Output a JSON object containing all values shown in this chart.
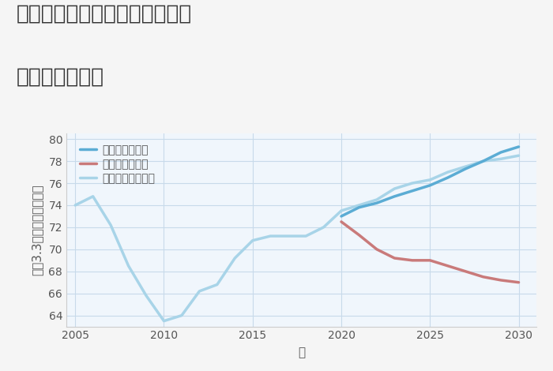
{
  "title_line1": "大阪府堺市堺区百舌鳥夕雲町の",
  "title_line2": "土地の価格推移",
  "xlabel": "年",
  "ylabel": "坪（3.3㎡）単価（万円）",
  "ylim": [
    63,
    80.5
  ],
  "xlim": [
    2004.5,
    2031
  ],
  "yticks": [
    64,
    66,
    68,
    70,
    72,
    74,
    76,
    78,
    80
  ],
  "xticks": [
    2005,
    2010,
    2015,
    2020,
    2025,
    2030
  ],
  "fig_bg_color": "#f5f5f5",
  "plot_bg_color": "#f0f6fc",
  "grid_color": "#c8daea",
  "good_scenario": {
    "years": [
      2020,
      2021,
      2022,
      2023,
      2024,
      2025,
      2026,
      2027,
      2028,
      2029,
      2030
    ],
    "values": [
      73.0,
      73.8,
      74.2,
      74.8,
      75.3,
      75.8,
      76.5,
      77.3,
      78.0,
      78.8,
      79.3
    ],
    "color": "#5bacd4",
    "label": "グッドシナリオ",
    "linewidth": 2.5
  },
  "bad_scenario": {
    "years": [
      2020,
      2021,
      2022,
      2023,
      2024,
      2025,
      2026,
      2027,
      2028,
      2029,
      2030
    ],
    "values": [
      72.5,
      71.3,
      70.0,
      69.2,
      69.0,
      69.0,
      68.5,
      68.0,
      67.5,
      67.2,
      67.0
    ],
    "color": "#c97a7a",
    "label": "バッドシナリオ",
    "linewidth": 2.5
  },
  "normal_scenario": {
    "years": [
      2005,
      2006,
      2007,
      2008,
      2009,
      2010,
      2011,
      2012,
      2013,
      2014,
      2015,
      2016,
      2017,
      2018,
      2019,
      2020,
      2021,
      2022,
      2023,
      2024,
      2025,
      2026,
      2027,
      2028,
      2029,
      2030
    ],
    "values": [
      74.0,
      74.8,
      72.2,
      68.5,
      65.8,
      63.5,
      64.0,
      66.2,
      66.8,
      69.2,
      70.8,
      71.2,
      71.2,
      71.2,
      72.0,
      73.5,
      74.0,
      74.5,
      75.5,
      76.0,
      76.3,
      77.0,
      77.5,
      78.0,
      78.2,
      78.5
    ],
    "color": "#a8d4e8",
    "label": "ノーマルシナリオ",
    "linewidth": 2.5
  },
  "title_fontsize": 19,
  "axis_label_fontsize": 11,
  "tick_fontsize": 10,
  "legend_fontsize": 10
}
